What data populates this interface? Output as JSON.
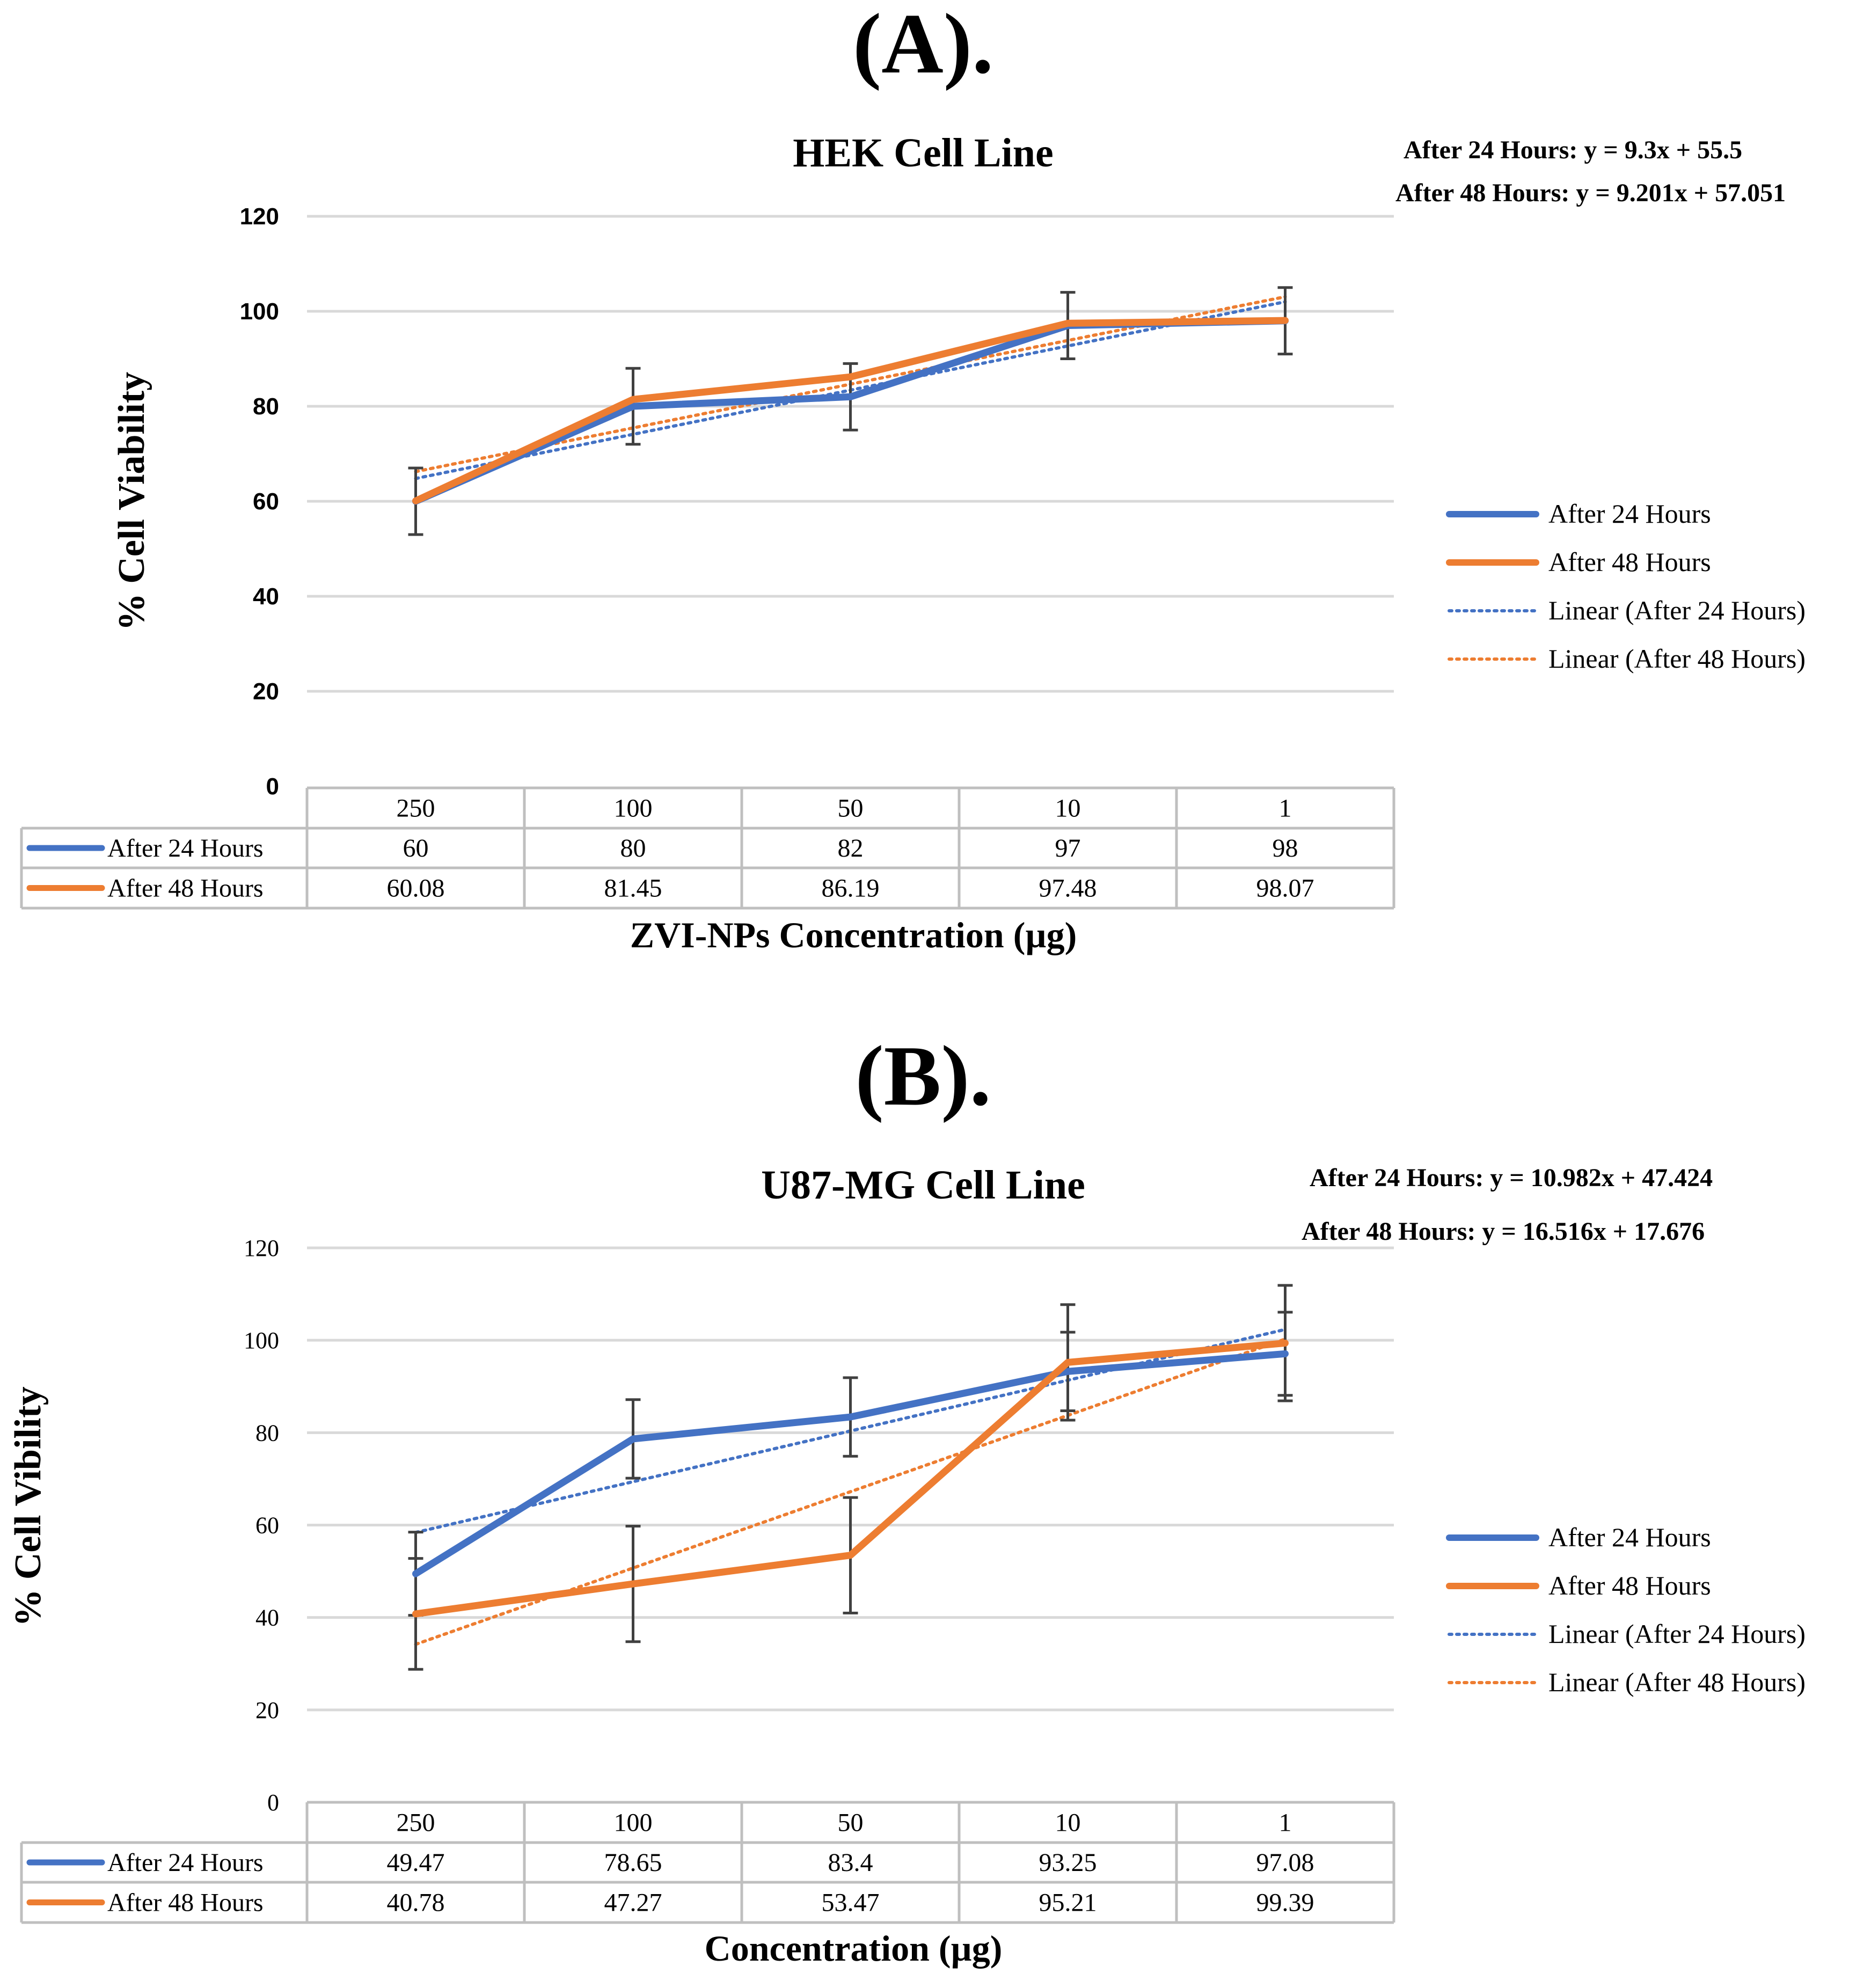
{
  "colors": {
    "series_24h": "#4472C4",
    "series_48h": "#ED7D31",
    "gridline": "#D9D9D9",
    "table_border": "#BFBFBF",
    "error_bar": "#404040"
  },
  "chart_data": [
    {
      "type": "line",
      "panel_label": "(A).",
      "title": "HEK Cell Line",
      "xlabel": "ZVI-NPs Concentration (µg)",
      "ylabel": "% Cell Viability",
      "ylim": [
        0,
        120
      ],
      "yticks": [
        "0",
        "20",
        "40",
        "60",
        "80",
        "100",
        "120"
      ],
      "categories": [
        "250",
        "100",
        "50",
        "10",
        "1"
      ],
      "grid": true,
      "legend_position": "right",
      "equations": [
        "After 24 Hours: y = 9.3x + 55.5",
        "After 48 Hours: y = 9.201x + 57.051"
      ],
      "series": [
        {
          "name": "After 24 Hours",
          "values": [
            60,
            80,
            82,
            97,
            98
          ],
          "table": [
            "60",
            "80",
            "82",
            "97",
            "98"
          ],
          "error": [
            7,
            8,
            7,
            7,
            7
          ]
        },
        {
          "name": "After 48 Hours",
          "values": [
            60.08,
            81.45,
            86.19,
            97.48,
            98.07
          ],
          "table": [
            "60.08",
            "81.45",
            "86.19",
            "97.48",
            "98.07"
          ],
          "error": [
            null,
            null,
            null,
            null,
            null
          ]
        }
      ],
      "trendlines": [
        {
          "name": "Linear (After 24 Hours)",
          "slope": 9.3,
          "intercept": 55.5
        },
        {
          "name": "Linear (After 48 Hours)",
          "slope": 9.201,
          "intercept": 57.051
        }
      ]
    },
    {
      "type": "line",
      "panel_label": "(B).",
      "title": "U87-MG Cell Line",
      "xlabel": "Concentration (µg)",
      "ylabel": "% Cell Vibility",
      "ylim": [
        0,
        120
      ],
      "yticks": [
        "0",
        "20",
        "40",
        "60",
        "80",
        "100",
        "120"
      ],
      "categories": [
        "250",
        "100",
        "50",
        "10",
        "1"
      ],
      "grid": true,
      "legend_position": "right",
      "equations": [
        "After 24 Hours: y = 10.982x + 47.424",
        "After 48 Hours: y = 16.516x + 17.676"
      ],
      "series": [
        {
          "name": "After 24 Hours",
          "values": [
            49.47,
            78.65,
            83.4,
            93.25,
            97.08
          ],
          "table": [
            "49.47",
            "78.65",
            "83.4",
            "93.25",
            "97.08"
          ],
          "error": [
            9,
            8.5,
            8.5,
            8.5,
            9
          ]
        },
        {
          "name": "After 48 Hours",
          "values": [
            40.78,
            47.27,
            53.47,
            95.21,
            99.39
          ],
          "table": [
            "40.78",
            "47.27",
            "53.47",
            "95.21",
            "99.39"
          ],
          "error": [
            12,
            12.5,
            12.5,
            12.5,
            12.5
          ]
        }
      ],
      "trendlines": [
        {
          "name": "Linear (After 24 Hours)",
          "slope": 10.982,
          "intercept": 47.424
        },
        {
          "name": "Linear (After 48 Hours)",
          "slope": 16.516,
          "intercept": 17.676
        }
      ]
    }
  ]
}
